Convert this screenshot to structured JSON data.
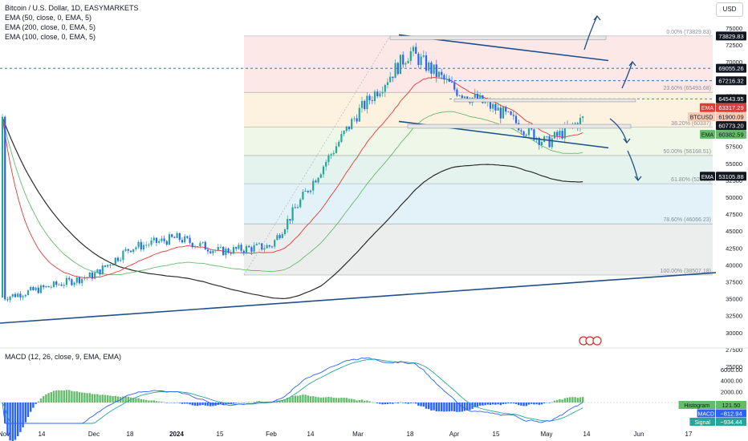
{
  "header": {
    "symbol": "Bitcoin / U.S. Dollar, 1D, EASYMARKETS",
    "indicators": [
      "EMA (50, close, 0, EMA, 5)",
      "EMA (200, close, 0, EMA, 5)",
      "EMA (100, close, 0, EMA, 5)"
    ],
    "currency_button": "USD"
  },
  "macd_legend": "MACD (12, 26, close, 9, EMA, EMA)",
  "colors": {
    "up": "#26a69a",
    "down": "#2962ff",
    "ema50": "#e53935",
    "ema100": "#66bb6a",
    "ema200": "#2b2b2b",
    "trend": "#1e4f8a",
    "macd": "#2962ff",
    "signal": "#26a69a"
  },
  "chart_data": {
    "type": "candlestick",
    "symbol": "BTCUSD",
    "timeframe": "1D",
    "ylim": [
      23000,
      76500
    ],
    "price_ticks": [
      75000,
      72500,
      70000,
      67500,
      65000,
      62500,
      60000,
      57500,
      55000,
      52500,
      50000,
      47500,
      45000,
      42500,
      40000,
      37500,
      35000,
      32500,
      30000,
      27500,
      25000
    ],
    "x_ticks": [
      "Nov",
      "14",
      "Dec",
      "18",
      "2024",
      "15",
      "Feb",
      "14",
      "Mar",
      "18",
      "Apr",
      "15",
      "May",
      "14",
      "Jun",
      "17"
    ],
    "price_path": [
      [
        "Nov",
        35200
      ],
      [
        "14",
        36500
      ],
      [
        "Dec",
        38500
      ],
      [
        "18",
        42500
      ],
      [
        "2024",
        44000
      ],
      [
        "15",
        42000
      ],
      [
        "Feb",
        42800
      ],
      [
        "14",
        51800
      ],
      [
        "Mar",
        62500
      ],
      [
        "18",
        71500
      ],
      [
        "Apr",
        66000
      ],
      [
        "15",
        63000
      ],
      [
        "May",
        58000
      ],
      [
        "14",
        61900
      ]
    ],
    "ema_lines": [
      {
        "name": "EMA 50",
        "last": 63317.29
      },
      {
        "name": "EMA 100",
        "last": 60382.59
      },
      {
        "name": "EMA 200",
        "last": 53105.88
      }
    ],
    "fibonacci": [
      {
        "level": "0.00%",
        "price": 73829.83
      },
      {
        "level": "23.60%",
        "price": 65493.68
      },
      {
        "level": "38.20%",
        "price": 60337
      },
      {
        "level": "50.00%",
        "price": 56168.51
      },
      {
        "level": "61.80%",
        "price": 52000
      },
      {
        "level": "78.60%",
        "price": 46066.23
      },
      {
        "level": "100.00%",
        "price": 38507.18
      }
    ],
    "price_labels": [
      {
        "text": "73829.83",
        "value": 73829.83,
        "style": "dark"
      },
      {
        "text": "69055.26",
        "value": 69055.26,
        "style": "dark"
      },
      {
        "text": "67216.32",
        "value": 67216.32,
        "style": "dark"
      },
      {
        "text": "64543.95",
        "value": 64543.95,
        "style": "dark"
      },
      {
        "text": "63317.29",
        "value": 63317.29,
        "style": "ema50",
        "tag": "EMA"
      },
      {
        "text": "61900.09",
        "value": 61900.09,
        "style": "last",
        "tag": "BTCUSD"
      },
      {
        "text": "60773.20",
        "value": 60773.2,
        "style": "dark"
      },
      {
        "text": "60382.59",
        "value": 60382.59,
        "style": "ema100",
        "tag": "EMA"
      },
      {
        "text": "53105.88",
        "value": 53105.88,
        "style": "dark",
        "tag": "EMA"
      }
    ],
    "macd": {
      "ylim": [
        -1500,
        6500
      ],
      "ticks": [
        6000,
        4000,
        2000,
        0
      ],
      "tick_labels": [
        "6000.00",
        "4000.00",
        "2000.00",
        "0.00"
      ],
      "histogram": 121.5,
      "macd": -812.94,
      "signal": -934.44,
      "labels": [
        {
          "tag": "Histogram",
          "text": "121.50"
        },
        {
          "tag": "MACD",
          "text": "−812.94"
        },
        {
          "tag": "Signal",
          "text": "−934.44"
        }
      ]
    }
  }
}
